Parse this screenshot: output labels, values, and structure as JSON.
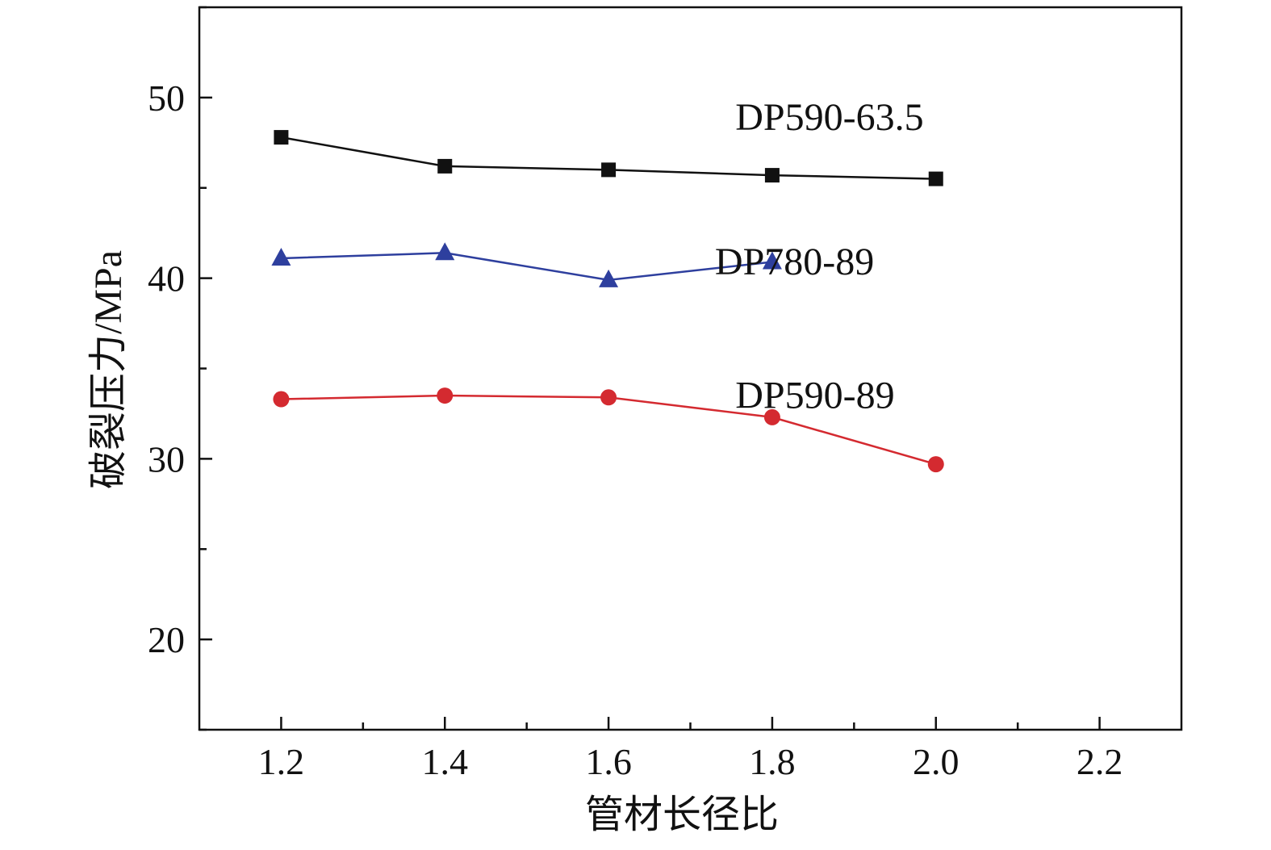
{
  "chart_data": {
    "type": "line",
    "title": "",
    "xlabel": "管材长径比",
    "ylabel": "破裂压力/MPa",
    "xlim": [
      1.1,
      2.3
    ],
    "ylim": [
      15,
      55
    ],
    "xticks": [
      1.2,
      1.4,
      1.6,
      1.8,
      2.0,
      2.2
    ],
    "xtick_labels": [
      "1.2",
      "1.4",
      "1.6",
      "1.8",
      "2.0",
      "2.2"
    ],
    "yticks": [
      20,
      30,
      40,
      50
    ],
    "ytick_labels": [
      "20",
      "30",
      "40",
      "50"
    ],
    "grid": false,
    "legend": "none",
    "series": [
      {
        "name": "DP590-63.5",
        "marker": "square",
        "color": "#111111",
        "x": [
          1.2,
          1.4,
          1.6,
          1.8,
          2.0
        ],
        "y": [
          47.8,
          46.2,
          46.0,
          45.7,
          45.5
        ]
      },
      {
        "name": "DP780-89",
        "marker": "triangle",
        "color": "#2e3f9e",
        "x": [
          1.2,
          1.4,
          1.6,
          1.8
        ],
        "y": [
          41.1,
          41.4,
          39.9,
          40.9
        ]
      },
      {
        "name": "DP590-89",
        "marker": "circle",
        "color": "#d42a30",
        "x": [
          1.2,
          1.4,
          1.6,
          1.8,
          2.0
        ],
        "y": [
          33.3,
          33.5,
          33.4,
          32.3,
          29.7
        ]
      }
    ]
  }
}
